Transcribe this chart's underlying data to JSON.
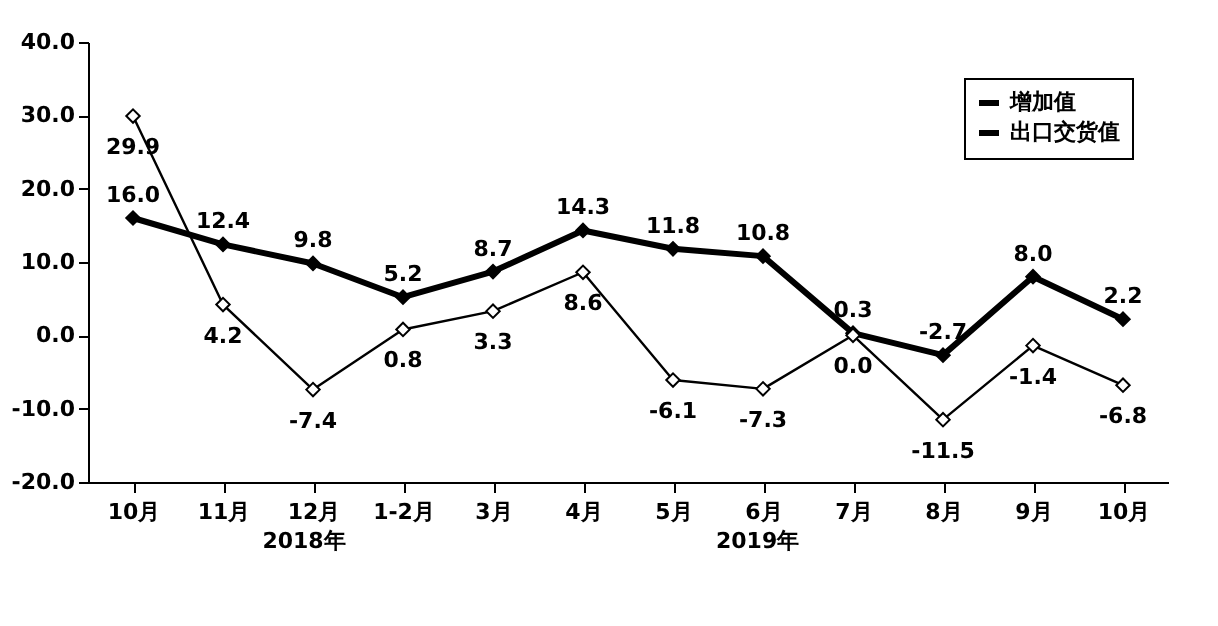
{
  "chart_data": {
    "type": "line",
    "categories": [
      "10月",
      "11月",
      "12月",
      "1-2月",
      "3月",
      "4月",
      "5月",
      "6月",
      "7月",
      "8月",
      "9月",
      "10月"
    ],
    "series": [
      {
        "name": "增加值",
        "color": "#000000",
        "values": [
          16.0,
          12.4,
          9.8,
          5.2,
          8.7,
          14.3,
          11.8,
          10.8,
          0.3,
          -2.7,
          8.0,
          2.2
        ],
        "value_labels": [
          "16.0",
          "12.4",
          "9.8",
          "5.2",
          "8.7",
          "14.3",
          "11.8",
          "10.8",
          "0.3",
          "-2.7",
          "8.0",
          "2.2"
        ]
      },
      {
        "name": "出口交货值",
        "color": "#000000",
        "values": [
          29.9,
          4.2,
          -7.4,
          0.8,
          3.3,
          8.6,
          -6.1,
          -7.3,
          0.0,
          -11.5,
          -1.4,
          -6.8
        ],
        "value_labels": [
          "29.9",
          "4.2",
          "-7.4",
          "0.8",
          "3.3",
          "8.6",
          "-6.1",
          "-7.3",
          "0.0",
          "-11.5",
          "-1.4",
          "-6.8"
        ]
      }
    ],
    "ylim": [
      -20,
      40
    ],
    "yticks": [
      {
        "value": -20,
        "label": "-20.0"
      },
      {
        "value": -10,
        "label": "-10.0"
      },
      {
        "value": 0,
        "label": "0.0"
      },
      {
        "value": 10,
        "label": "10.0"
      },
      {
        "value": 20,
        "label": "20.0"
      },
      {
        "value": 30,
        "label": "30.0"
      },
      {
        "value": 40,
        "label": "40.0"
      }
    ],
    "annotations": [
      "2018年",
      "2019年"
    ],
    "marker": "diamond",
    "line_style": "solid",
    "grid": false,
    "legend": "top right"
  }
}
